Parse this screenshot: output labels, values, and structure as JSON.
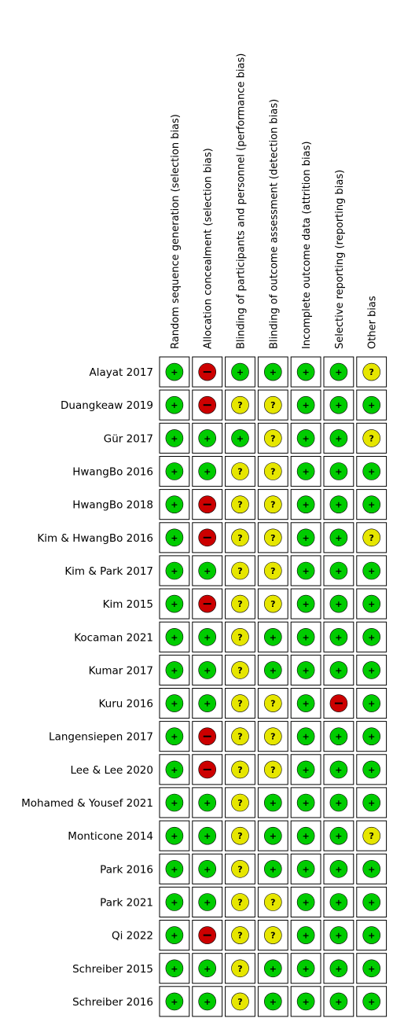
{
  "chart_data": {
    "type": "table",
    "columns": [
      "Random sequence generation (selection bias)",
      "Allocation concealment (selection bias)",
      "Blinding of participants and personnel (performance bias)",
      "Blinding of outcome assessment (detection bias)",
      "Incomplete outcome data (attrition bias)",
      "Selective reporting (reporting bias)",
      "Other bias"
    ],
    "rows": [
      {
        "study": "Alayat 2017",
        "ratings": [
          "+",
          "-",
          "+",
          "+",
          "+",
          "+",
          "?"
        ]
      },
      {
        "study": "Duangkeaw 2019",
        "ratings": [
          "+",
          "-",
          "?",
          "?",
          "+",
          "+",
          "+"
        ]
      },
      {
        "study": "Gür 2017",
        "ratings": [
          "+",
          "+",
          "+",
          "?",
          "+",
          "+",
          "?"
        ]
      },
      {
        "study": "HwangBo 2016",
        "ratings": [
          "+",
          "+",
          "?",
          "?",
          "+",
          "+",
          "+"
        ]
      },
      {
        "study": "HwangBo 2018",
        "ratings": [
          "+",
          "-",
          "?",
          "?",
          "+",
          "+",
          "+"
        ]
      },
      {
        "study": "Kim & HwangBo 2016",
        "ratings": [
          "+",
          "-",
          "?",
          "?",
          "+",
          "+",
          "?"
        ]
      },
      {
        "study": "Kim & Park 2017",
        "ratings": [
          "+",
          "+",
          "?",
          "?",
          "+",
          "+",
          "+"
        ]
      },
      {
        "study": "Kim 2015",
        "ratings": [
          "+",
          "-",
          "?",
          "?",
          "+",
          "+",
          "+"
        ]
      },
      {
        "study": "Kocaman 2021",
        "ratings": [
          "+",
          "+",
          "?",
          "+",
          "+",
          "+",
          "+"
        ]
      },
      {
        "study": "Kumar 2017",
        "ratings": [
          "+",
          "+",
          "?",
          "+",
          "+",
          "+",
          "+"
        ]
      },
      {
        "study": "Kuru 2016",
        "ratings": [
          "+",
          "+",
          "?",
          "?",
          "+",
          "-",
          "+"
        ]
      },
      {
        "study": "Langensiepen 2017",
        "ratings": [
          "+",
          "-",
          "?",
          "?",
          "+",
          "+",
          "+"
        ]
      },
      {
        "study": "Lee & Lee 2020",
        "ratings": [
          "+",
          "-",
          "?",
          "?",
          "+",
          "+",
          "+"
        ]
      },
      {
        "study": "Mohamed & Yousef 2021",
        "ratings": [
          "+",
          "+",
          "?",
          "+",
          "+",
          "+",
          "+"
        ]
      },
      {
        "study": "Monticone 2014",
        "ratings": [
          "+",
          "+",
          "?",
          "+",
          "+",
          "+",
          "?"
        ]
      },
      {
        "study": "Park 2016",
        "ratings": [
          "+",
          "+",
          "?",
          "+",
          "+",
          "+",
          "+"
        ]
      },
      {
        "study": "Park 2021",
        "ratings": [
          "+",
          "+",
          "?",
          "?",
          "+",
          "+",
          "+"
        ]
      },
      {
        "study": "Qi 2022",
        "ratings": [
          "+",
          "-",
          "?",
          "?",
          "+",
          "+",
          "+"
        ]
      },
      {
        "study": "Schreiber 2015",
        "ratings": [
          "+",
          "+",
          "?",
          "+",
          "+",
          "+",
          "+"
        ]
      },
      {
        "study": "Schreiber 2016",
        "ratings": [
          "+",
          "+",
          "?",
          "+",
          "+",
          "+",
          "+"
        ]
      }
    ],
    "rating_colors": {
      "+": "#00cc00",
      "-": "#cc0000",
      "?": "#e6e600"
    }
  }
}
